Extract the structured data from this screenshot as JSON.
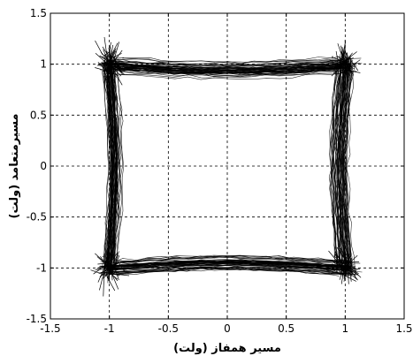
{
  "chart_data": {
    "type": "scatter",
    "title": "",
    "xlabel": "مسیر همفاز (ولت)",
    "ylabel": "مسیرمتعامد (ولت)",
    "xlim": [
      -1.5,
      1.5
    ],
    "ylim": [
      -1.5,
      1.5
    ],
    "xticks": [
      "-1.5",
      "-1",
      "-0.5",
      "0",
      "0.5",
      "1",
      "1.5"
    ],
    "yticks": [
      "1.5",
      "1",
      "0.5",
      "0",
      "-0.5",
      "-1",
      "-1.5"
    ],
    "grid": true,
    "legend": "none",
    "constellation_points": [
      {
        "x": -1,
        "y": 1
      },
      {
        "x": 1,
        "y": 1
      },
      {
        "x": 1,
        "y": -1
      },
      {
        "x": -1,
        "y": -1
      }
    ],
    "trace_color": "#000000"
  }
}
